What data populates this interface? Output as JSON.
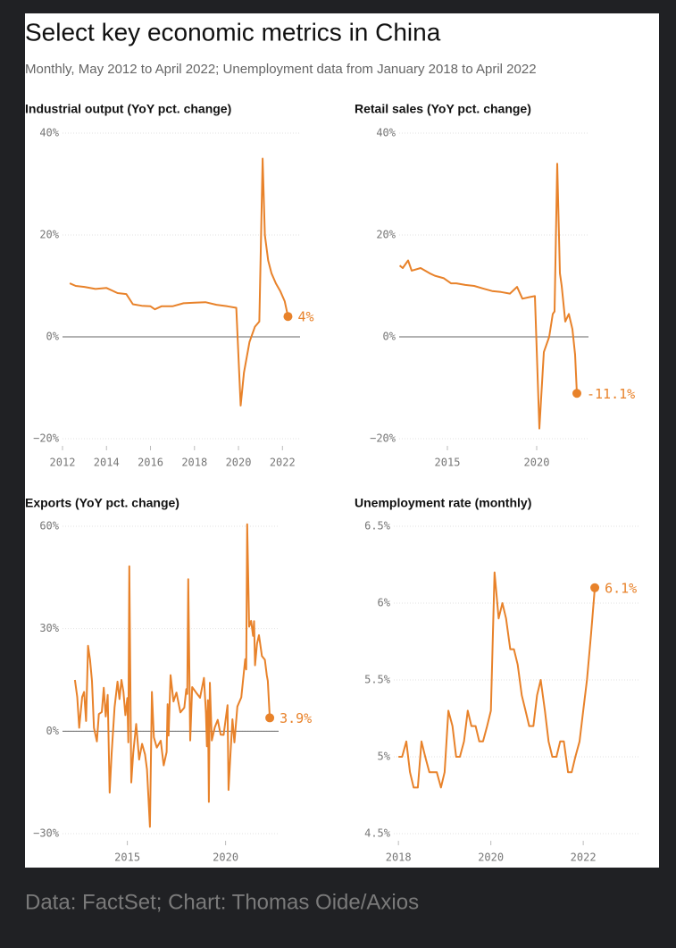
{
  "title": "Select key economic metrics in China",
  "subtitle": "Monthly, May 2012 to April 2022; Unemployment data from January 2018 to April 2022",
  "source": "Data: FactSet; Chart: Thomas Oide/Axios",
  "chart_data": [
    {
      "type": "line",
      "title": "Industrial output (YoY pct. change)",
      "color": "#e8822a",
      "grid": true,
      "zero_line": true,
      "x": [
        2012.33,
        2012.6,
        2013.0,
        2013.5,
        2014.0,
        2014.5,
        2014.9,
        2015.2,
        2015.6,
        2016.0,
        2016.2,
        2016.5,
        2017.0,
        2017.5,
        2018.0,
        2018.5,
        2019.0,
        2019.5,
        2019.9,
        2020.1,
        2020.25,
        2020.5,
        2020.75,
        2020.95,
        2021.1,
        2021.2,
        2021.35,
        2021.5,
        2021.7,
        2021.9,
        2022.1,
        2022.25
      ],
      "values": [
        10.5,
        10,
        9.8,
        9.4,
        9.6,
        8.6,
        8.4,
        6.4,
        6.1,
        6,
        5.4,
        6,
        6,
        6.6,
        6.7,
        6.8,
        6.3,
        6,
        5.7,
        -13.5,
        -7,
        -1,
        2,
        3,
        35,
        20,
        15,
        12.5,
        10.5,
        9,
        7,
        4
      ],
      "value_labels": [
        null,
        null,
        null,
        null,
        null,
        null,
        null,
        null,
        null,
        null,
        null,
        null,
        null,
        null,
        null,
        null,
        null,
        null,
        null,
        null,
        null,
        null,
        null,
        null,
        null,
        null,
        null,
        null,
        null,
        null,
        null,
        "4%"
      ],
      "xlim": [
        2012,
        2022.8
      ],
      "xticks": [
        2012,
        2014,
        2016,
        2018,
        2020,
        2022
      ],
      "ylim": [
        -20,
        40
      ],
      "yticks": [
        {
          "value": -20,
          "label": "−20%"
        },
        {
          "value": 0,
          "label": "0%"
        },
        {
          "value": 20,
          "label": "20%"
        },
        {
          "value": 40,
          "label": "40%"
        }
      ]
    },
    {
      "type": "line",
      "title": "Retail sales (YoY pct. change)",
      "color": "#e8822a",
      "grid": true,
      "zero_line": true,
      "x": [
        2012.33,
        2012.5,
        2012.8,
        2013.0,
        2013.5,
        2014.0,
        2014.3,
        2014.8,
        2015.2,
        2015.5,
        2016.0,
        2016.5,
        2017.0,
        2017.5,
        2018.0,
        2018.5,
        2018.9,
        2019.2,
        2019.6,
        2019.9,
        2020.15,
        2020.4,
        2020.7,
        2020.9,
        2021.0,
        2021.15,
        2021.3,
        2021.4,
        2021.6,
        2021.8,
        2022.0,
        2022.15,
        2022.25
      ],
      "values": [
        14,
        13.5,
        15,
        13,
        13.5,
        12.5,
        12,
        11.5,
        10.5,
        10.5,
        10.2,
        10,
        9.5,
        9,
        8.8,
        8.5,
        9.8,
        7.5,
        7.8,
        8,
        -18,
        -3,
        0,
        4.5,
        5,
        34,
        12.5,
        10,
        3,
        4.5,
        1.5,
        -3.5,
        -11.1
      ],
      "value_labels": [
        null,
        null,
        null,
        null,
        null,
        null,
        null,
        null,
        null,
        null,
        null,
        null,
        null,
        null,
        null,
        null,
        null,
        null,
        null,
        null,
        null,
        null,
        null,
        null,
        null,
        null,
        null,
        null,
        null,
        null,
        null,
        null,
        "-11.1%"
      ],
      "xlim": [
        2012.3,
        2022.9
      ],
      "xticks": [
        2015,
        2020
      ],
      "ylim": [
        -20,
        40
      ],
      "yticks": [
        {
          "value": -20,
          "label": "−20%"
        },
        {
          "value": 0,
          "label": "0%"
        },
        {
          "value": 20,
          "label": "20%"
        },
        {
          "value": 40,
          "label": "40%"
        }
      ]
    },
    {
      "type": "line",
      "title": "Exports (YoY pct. change)",
      "color": "#e8822a",
      "grid": true,
      "zero_line": true,
      "x": [
        2012.33,
        2012.45,
        2012.55,
        2012.7,
        2012.8,
        2012.9,
        2013.0,
        2013.1,
        2013.2,
        2013.3,
        2013.45,
        2013.55,
        2013.7,
        2013.8,
        2013.9,
        2014.0,
        2014.1,
        2014.2,
        2014.35,
        2014.5,
        2014.6,
        2014.7,
        2014.8,
        2014.9,
        2015.0,
        2015.05,
        2015.1,
        2015.2,
        2015.3,
        2015.45,
        2015.6,
        2015.75,
        2015.9,
        2016.0,
        2016.15,
        2016.25,
        2016.35,
        2016.5,
        2016.7,
        2016.85,
        2017.0,
        2017.05,
        2017.1,
        2017.2,
        2017.35,
        2017.5,
        2017.7,
        2017.9,
        2018.0,
        2018.05,
        2018.1,
        2018.2,
        2018.3,
        2018.5,
        2018.7,
        2018.9,
        2019.0,
        2019.05,
        2019.1,
        2019.15,
        2019.2,
        2019.3,
        2019.45,
        2019.6,
        2019.75,
        2019.9,
        2020.1,
        2020.15,
        2020.25,
        2020.35,
        2020.45,
        2020.6,
        2020.8,
        2021.0,
        2021.05,
        2021.1,
        2021.2,
        2021.3,
        2021.4,
        2021.45,
        2021.5,
        2021.6,
        2021.7,
        2021.85,
        2022.0,
        2022.1,
        2022.15,
        2022.25
      ],
      "values": [
        15,
        10,
        1,
        10,
        11.5,
        3,
        25,
        21,
        14.7,
        1,
        -3,
        5,
        5.6,
        12.7,
        4.3,
        10.6,
        -18,
        -6.6,
        7,
        14.5,
        9.4,
        15,
        11.6,
        4.7,
        9.7,
        -3.3,
        48.3,
        -15,
        -6.4,
        2.1,
        -8.3,
        -3.7,
        -6.8,
        -11.2,
        -28,
        11.5,
        -1.8,
        -4.8,
        -2.8,
        -10,
        -6.1,
        7.9,
        -1.3,
        16.4,
        8.7,
        11.3,
        5.5,
        6.9,
        12.3,
        10.9,
        44.5,
        -2.7,
        12.9,
        11.3,
        9.8,
        15.6,
        5.4,
        -4.4,
        9.1,
        -20.7,
        14.2,
        -2.7,
        1.1,
        3.3,
        -1,
        -1.1,
        7.6,
        -17.2,
        -6.6,
        3.5,
        -3.3,
        7.2,
        9.9,
        21.1,
        18.1,
        60.6,
        30.6,
        32.3,
        27.9,
        32.2,
        19.3,
        25.6,
        28.1,
        22,
        20.9,
        16.3,
        14.7,
        3.9
      ],
      "value_labels": [
        null,
        null,
        null,
        null,
        null,
        null,
        null,
        null,
        null,
        null,
        null,
        null,
        null,
        null,
        null,
        null,
        null,
        null,
        null,
        null,
        null,
        null,
        null,
        null,
        null,
        null,
        null,
        null,
        null,
        null,
        null,
        null,
        null,
        null,
        null,
        null,
        null,
        null,
        null,
        null,
        null,
        null,
        null,
        null,
        null,
        null,
        null,
        null,
        null,
        null,
        null,
        null,
        null,
        null,
        null,
        null,
        null,
        null,
        null,
        null,
        null,
        null,
        null,
        null,
        null,
        null,
        null,
        null,
        null,
        null,
        null,
        null,
        null,
        null,
        null,
        null,
        null,
        null,
        null,
        null,
        null,
        null,
        null,
        null,
        null,
        null,
        null,
        "3.9%"
      ],
      "xlim": [
        2011.7,
        2022.7
      ],
      "xticks": [
        2015,
        2020
      ],
      "ylim": [
        -30,
        60
      ],
      "yticks": [
        {
          "value": -30,
          "label": "−30%"
        },
        {
          "value": 0,
          "label": "0%"
        },
        {
          "value": 30,
          "label": "30%"
        },
        {
          "value": 60,
          "label": "60%"
        }
      ]
    },
    {
      "type": "line",
      "title": "Unemployment rate (monthly)",
      "color": "#e8822a",
      "grid": true,
      "zero_line": false,
      "x": [
        2018.0,
        2018.08,
        2018.17,
        2018.25,
        2018.33,
        2018.42,
        2018.5,
        2018.58,
        2018.67,
        2018.75,
        2018.83,
        2018.92,
        2019.0,
        2019.08,
        2019.17,
        2019.25,
        2019.33,
        2019.42,
        2019.5,
        2019.58,
        2019.67,
        2019.75,
        2019.83,
        2019.92,
        2020.0,
        2020.08,
        2020.17,
        2020.25,
        2020.33,
        2020.42,
        2020.5,
        2020.58,
        2020.67,
        2020.75,
        2020.83,
        2020.92,
        2021.0,
        2021.08,
        2021.17,
        2021.25,
        2021.33,
        2021.42,
        2021.5,
        2021.58,
        2021.67,
        2021.75,
        2021.83,
        2021.92,
        2022.0,
        2022.08,
        2022.17,
        2022.25
      ],
      "values": [
        5.0,
        5.0,
        5.1,
        4.9,
        4.8,
        4.8,
        5.1,
        5.0,
        4.9,
        4.9,
        4.9,
        4.8,
        4.9,
        5.3,
        5.2,
        5.0,
        5.0,
        5.1,
        5.3,
        5.2,
        5.2,
        5.1,
        5.1,
        5.2,
        5.3,
        6.2,
        5.9,
        6.0,
        5.9,
        5.7,
        5.7,
        5.6,
        5.4,
        5.3,
        5.2,
        5.2,
        5.4,
        5.5,
        5.3,
        5.1,
        5.0,
        5.0,
        5.1,
        5.1,
        4.9,
        4.9,
        5.0,
        5.1,
        5.3,
        5.5,
        5.8,
        6.1
      ],
      "value_labels": [
        null,
        null,
        null,
        null,
        null,
        null,
        null,
        null,
        null,
        null,
        null,
        null,
        null,
        null,
        null,
        null,
        null,
        null,
        null,
        null,
        null,
        null,
        null,
        null,
        null,
        null,
        null,
        null,
        null,
        null,
        null,
        null,
        null,
        null,
        null,
        null,
        null,
        null,
        null,
        null,
        null,
        null,
        null,
        null,
        null,
        null,
        null,
        null,
        null,
        null,
        null,
        "6.1%"
      ],
      "xlim": [
        2017.9,
        2022.5
      ],
      "xticks": [
        2018,
        2020,
        2022
      ],
      "ylim": [
        4.5,
        6.5
      ],
      "yticks": [
        {
          "value": 4.5,
          "label": "4.5%"
        },
        {
          "value": 5,
          "label": "5%"
        },
        {
          "value": 5.5,
          "label": "5.5%"
        },
        {
          "value": 6,
          "label": "6%"
        },
        {
          "value": 6.5,
          "label": "6.5%"
        }
      ]
    }
  ]
}
